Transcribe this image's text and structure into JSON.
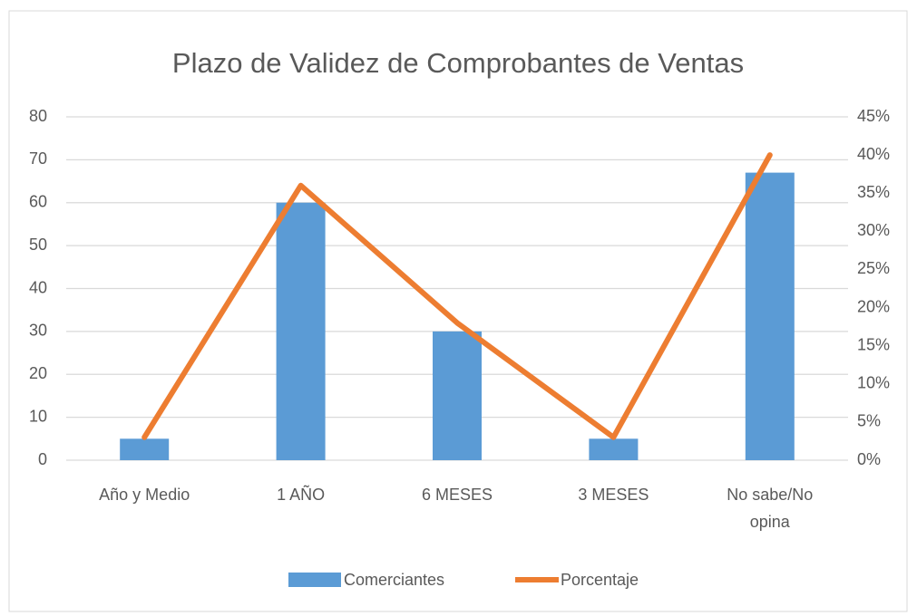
{
  "chart_data": {
    "type": "bar_line",
    "title": "Plazo de Validez de Comprobantes de Ventas",
    "categories": [
      "Año y Medio",
      "1 AÑO",
      "6 MESES",
      "3 MESES",
      "No sabe/No opina"
    ],
    "series": [
      {
        "name": "Comerciantes",
        "color": "#5b9bd5",
        "type": "bar",
        "values": [
          5,
          60,
          30,
          5,
          67
        ]
      },
      {
        "name": "Porcentaje",
        "color": "#ed7d31",
        "type": "line",
        "axis": "y2",
        "values": [
          3,
          36,
          18,
          3,
          40
        ]
      }
    ],
    "ylim": [
      0,
      80
    ],
    "yticks": [
      0,
      10,
      20,
      30,
      40,
      50,
      60,
      70,
      80
    ],
    "y2lim": [
      0,
      45
    ],
    "y2ticks": [
      {
        "value": 0,
        "label": "0%"
      },
      {
        "value": 5,
        "label": "5%"
      },
      {
        "value": 10,
        "label": "10%"
      },
      {
        "value": 15,
        "label": "15%"
      },
      {
        "value": 20,
        "label": "20%"
      },
      {
        "value": 25,
        "label": "25%"
      },
      {
        "value": 30,
        "label": "30%"
      },
      {
        "value": 35,
        "label": "35%"
      },
      {
        "value": 40,
        "label": "40%"
      },
      {
        "value": 45,
        "label": "45%"
      }
    ],
    "grid": true,
    "legend": "bottom"
  }
}
